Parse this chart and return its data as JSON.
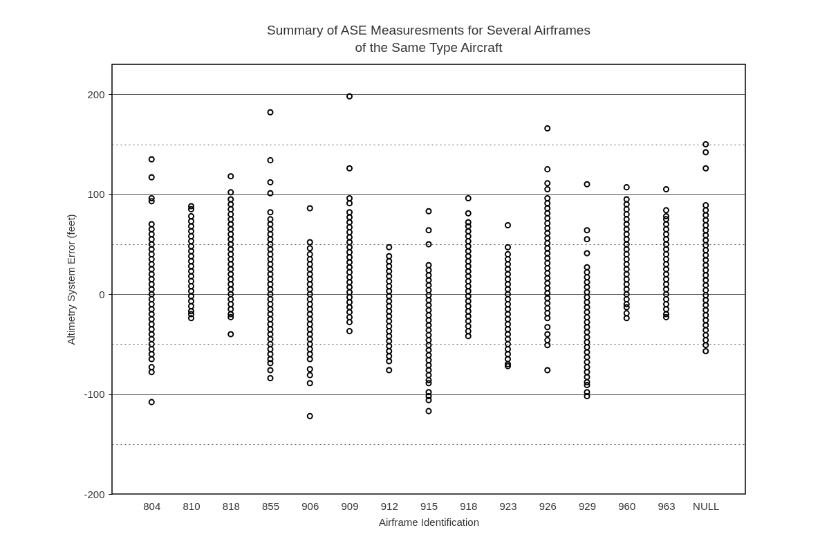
{
  "chart_data": {
    "type": "scatter",
    "title": "Summary of ASE Measuresments for Several Airframes\nof the Same Type Aircraft",
    "xlabel": "Airframe Identification",
    "ylabel": "Altimetry System Error (feet)",
    "categories": [
      "804",
      "810",
      "818",
      "855",
      "906",
      "909",
      "912",
      "915",
      "918",
      "923",
      "926",
      "929",
      "960",
      "963",
      "NULL"
    ],
    "ylim": [
      -200,
      230
    ],
    "yticks": [
      -200,
      {
        "value": -150,
        "label": null
      },
      -100,
      {
        "value": -50,
        "label": null
      },
      0,
      {
        "value": 50,
        "label": null
      },
      100,
      {
        "value": 150,
        "label": null
      },
      200
    ],
    "grid": "y",
    "marker": "circle",
    "series": [
      {
        "color": "#000000",
        "x": [
          "804",
          "804",
          "804",
          "804",
          "804",
          "804",
          "804",
          "804",
          "804",
          "804",
          "804",
          "804",
          "804",
          "804",
          "804",
          "804",
          "804",
          "804",
          "804",
          "804",
          "804",
          "804",
          "804",
          "804",
          "804",
          "804",
          "804",
          "804",
          "804",
          "804",
          "804",
          "804",
          "804",
          "804",
          "804"
        ],
        "values": [
          135,
          117,
          96,
          93,
          70,
          65,
          60,
          55,
          50,
          45,
          40,
          35,
          30,
          25,
          20,
          15,
          10,
          5,
          0,
          -5,
          -10,
          -15,
          -20,
          -25,
          -30,
          -35,
          -40,
          -45,
          -50,
          -55,
          -60,
          -65,
          -73,
          -78,
          -108
        ]
      },
      {
        "color": "#000000",
        "x": [
          "810",
          "810",
          "810",
          "810",
          "810",
          "810",
          "810",
          "810",
          "810",
          "810",
          "810",
          "810",
          "810",
          "810",
          "810",
          "810",
          "810",
          "810",
          "810",
          "810",
          "810",
          "810",
          "810",
          "810"
        ],
        "values": [
          88,
          85,
          78,
          73,
          68,
          63,
          58,
          53,
          48,
          43,
          38,
          33,
          28,
          23,
          18,
          13,
          8,
          3,
          -2,
          -7,
          -12,
          -17,
          -20,
          -24
        ]
      },
      {
        "color": "#000000",
        "x": [
          "818",
          "818",
          "818",
          "818",
          "818",
          "818",
          "818",
          "818",
          "818",
          "818",
          "818",
          "818",
          "818",
          "818",
          "818",
          "818",
          "818",
          "818",
          "818",
          "818",
          "818",
          "818",
          "818",
          "818",
          "818",
          "818",
          "818",
          "818"
        ],
        "values": [
          118,
          102,
          95,
          90,
          85,
          80,
          75,
          70,
          65,
          60,
          55,
          50,
          45,
          40,
          35,
          30,
          25,
          20,
          15,
          10,
          5,
          0,
          -5,
          -10,
          -15,
          -20,
          -23,
          -40
        ]
      },
      {
        "color": "#000000",
        "x": [
          "855",
          "855",
          "855",
          "855",
          "855",
          "855",
          "855",
          "855",
          "855",
          "855",
          "855",
          "855",
          "855",
          "855",
          "855",
          "855",
          "855",
          "855",
          "855",
          "855",
          "855",
          "855",
          "855",
          "855",
          "855",
          "855",
          "855",
          "855",
          "855",
          "855",
          "855",
          "855",
          "855",
          "855",
          "855",
          "855",
          "855"
        ],
        "values": [
          182,
          134,
          112,
          101,
          82,
          75,
          70,
          65,
          60,
          55,
          50,
          45,
          40,
          35,
          30,
          25,
          20,
          15,
          10,
          5,
          0,
          -5,
          -10,
          -15,
          -20,
          -25,
          -30,
          -35,
          -40,
          -45,
          -50,
          -55,
          -60,
          -65,
          -69,
          -76,
          -84
        ]
      },
      {
        "color": "#000000",
        "x": [
          "906",
          "906",
          "906",
          "906",
          "906",
          "906",
          "906",
          "906",
          "906",
          "906",
          "906",
          "906",
          "906",
          "906",
          "906",
          "906",
          "906",
          "906",
          "906",
          "906",
          "906",
          "906",
          "906",
          "906",
          "906",
          "906",
          "906",
          "906",
          "906"
        ],
        "values": [
          86,
          52,
          46,
          40,
          35,
          30,
          25,
          20,
          15,
          10,
          5,
          0,
          -5,
          -10,
          -15,
          -20,
          -25,
          -30,
          -35,
          -40,
          -45,
          -50,
          -55,
          -60,
          -65,
          -75,
          -81,
          -89,
          -122
        ]
      },
      {
        "color": "#000000",
        "x": [
          "909",
          "909",
          "909",
          "909",
          "909",
          "909",
          "909",
          "909",
          "909",
          "909",
          "909",
          "909",
          "909",
          "909",
          "909",
          "909",
          "909",
          "909",
          "909",
          "909",
          "909",
          "909",
          "909",
          "909",
          "909",
          "909",
          "909",
          "909"
        ],
        "values": [
          198,
          126,
          96,
          91,
          82,
          77,
          72,
          67,
          62,
          57,
          52,
          47,
          42,
          37,
          32,
          27,
          22,
          17,
          12,
          7,
          2,
          -3,
          -8,
          -13,
          -18,
          -23,
          -28,
          -37
        ]
      },
      {
        "color": "#000000",
        "x": [
          "912",
          "912",
          "912",
          "912",
          "912",
          "912",
          "912",
          "912",
          "912",
          "912",
          "912",
          "912",
          "912",
          "912",
          "912",
          "912",
          "912",
          "912",
          "912",
          "912",
          "912",
          "912",
          "912",
          "912"
        ],
        "values": [
          47,
          38,
          33,
          28,
          23,
          18,
          13,
          8,
          3,
          -2,
          -7,
          -12,
          -17,
          -22,
          -27,
          -32,
          -37,
          -42,
          -47,
          -52,
          -57,
          -62,
          -67,
          -76
        ]
      },
      {
        "color": "#000000",
        "x": [
          "915",
          "915",
          "915",
          "915",
          "915",
          "915",
          "915",
          "915",
          "915",
          "915",
          "915",
          "915",
          "915",
          "915",
          "915",
          "915",
          "915",
          "915",
          "915",
          "915",
          "915",
          "915",
          "915",
          "915",
          "915",
          "915",
          "915",
          "915",
          "915",
          "915",
          "915",
          "915"
        ],
        "values": [
          83,
          64,
          50,
          29,
          24,
          19,
          14,
          9,
          4,
          -1,
          -6,
          -11,
          -16,
          -21,
          -26,
          -31,
          -36,
          -41,
          -46,
          -51,
          -56,
          -61,
          -66,
          -71,
          -76,
          -81,
          -86,
          -89,
          -98,
          -102,
          -106,
          -117
        ]
      },
      {
        "color": "#000000",
        "x": [
          "918",
          "918",
          "918",
          "918",
          "918",
          "918",
          "918",
          "918",
          "918",
          "918",
          "918",
          "918",
          "918",
          "918",
          "918",
          "918",
          "918",
          "918",
          "918",
          "918",
          "918",
          "918",
          "918",
          "918",
          "918",
          "918"
        ],
        "values": [
          96,
          81,
          72,
          68,
          63,
          58,
          53,
          48,
          43,
          38,
          33,
          28,
          23,
          18,
          13,
          8,
          3,
          -2,
          -7,
          -12,
          -17,
          -22,
          -27,
          -32,
          -37,
          -42
        ]
      },
      {
        "color": "#000000",
        "x": [
          "923",
          "923",
          "923",
          "923",
          "923",
          "923",
          "923",
          "923",
          "923",
          "923",
          "923",
          "923",
          "923",
          "923",
          "923",
          "923",
          "923",
          "923",
          "923",
          "923",
          "923",
          "923",
          "923",
          "923",
          "923",
          "923"
        ],
        "values": [
          69,
          47,
          40,
          35,
          30,
          25,
          20,
          15,
          10,
          5,
          0,
          -5,
          -10,
          -15,
          -20,
          -25,
          -30,
          -35,
          -40,
          -45,
          -50,
          -55,
          -60,
          -65,
          -70,
          -72
        ]
      },
      {
        "color": "#000000",
        "x": [
          "926",
          "926",
          "926",
          "926",
          "926",
          "926",
          "926",
          "926",
          "926",
          "926",
          "926",
          "926",
          "926",
          "926",
          "926",
          "926",
          "926",
          "926",
          "926",
          "926",
          "926",
          "926",
          "926",
          "926",
          "926",
          "926",
          "926",
          "926",
          "926",
          "926",
          "926",
          "926",
          "926",
          "926"
        ],
        "values": [
          166,
          125,
          111,
          105,
          96,
          91,
          86,
          81,
          76,
          71,
          66,
          61,
          56,
          51,
          46,
          41,
          36,
          31,
          26,
          21,
          16,
          11,
          6,
          1,
          -4,
          -9,
          -14,
          -19,
          -24,
          -33,
          -40,
          -46,
          -51,
          -76
        ]
      },
      {
        "color": "#000000",
        "x": [
          "929",
          "929",
          "929",
          "929",
          "929",
          "929",
          "929",
          "929",
          "929",
          "929",
          "929",
          "929",
          "929",
          "929",
          "929",
          "929",
          "929",
          "929",
          "929",
          "929",
          "929",
          "929",
          "929",
          "929",
          "929",
          "929",
          "929",
          "929",
          "929",
          "929",
          "929"
        ],
        "values": [
          110,
          64,
          55,
          41,
          27,
          22,
          17,
          12,
          7,
          2,
          -3,
          -8,
          -13,
          -18,
          -23,
          -28,
          -33,
          -38,
          -43,
          -48,
          -53,
          -58,
          -63,
          -68,
          -73,
          -78,
          -83,
          -88,
          -91,
          -98,
          -102
        ]
      },
      {
        "color": "#000000",
        "x": [
          "960",
          "960",
          "960",
          "960",
          "960",
          "960",
          "960",
          "960",
          "960",
          "960",
          "960",
          "960",
          "960",
          "960",
          "960",
          "960",
          "960",
          "960",
          "960",
          "960",
          "960",
          "960",
          "960",
          "960",
          "960",
          "960"
        ],
        "values": [
          107,
          95,
          90,
          85,
          80,
          75,
          70,
          65,
          60,
          55,
          50,
          45,
          40,
          35,
          30,
          25,
          20,
          15,
          10,
          5,
          0,
          -5,
          -10,
          -13,
          -19,
          -24
        ]
      },
      {
        "color": "#000000",
        "x": [
          "963",
          "963",
          "963",
          "963",
          "963",
          "963",
          "963",
          "963",
          "963",
          "963",
          "963",
          "963",
          "963",
          "963",
          "963",
          "963",
          "963",
          "963",
          "963",
          "963",
          "963",
          "963",
          "963",
          "963"
        ],
        "values": [
          105,
          84,
          78,
          75,
          70,
          65,
          60,
          55,
          50,
          45,
          40,
          35,
          30,
          25,
          20,
          15,
          10,
          5,
          0,
          -5,
          -10,
          -15,
          -20,
          -23
        ]
      },
      {
        "color": "#000000",
        "x": [
          "NULL",
          "NULL",
          "NULL",
          "NULL",
          "NULL",
          "NULL",
          "NULL",
          "NULL",
          "NULL",
          "NULL",
          "NULL",
          "NULL",
          "NULL",
          "NULL",
          "NULL",
          "NULL",
          "NULL",
          "NULL",
          "NULL",
          "NULL",
          "NULL",
          "NULL",
          "NULL",
          "NULL",
          "NULL",
          "NULL",
          "NULL",
          "NULL",
          "NULL",
          "NULL",
          "NULL",
          "NULL",
          "NULL"
        ],
        "values": [
          150,
          142,
          126,
          89,
          84,
          79,
          74,
          69,
          64,
          59,
          54,
          49,
          44,
          39,
          34,
          29,
          24,
          19,
          14,
          9,
          4,
          -1,
          -6,
          -11,
          -16,
          -21,
          -26,
          -31,
          -36,
          -41,
          -46,
          -51,
          -57
        ]
      }
    ]
  }
}
